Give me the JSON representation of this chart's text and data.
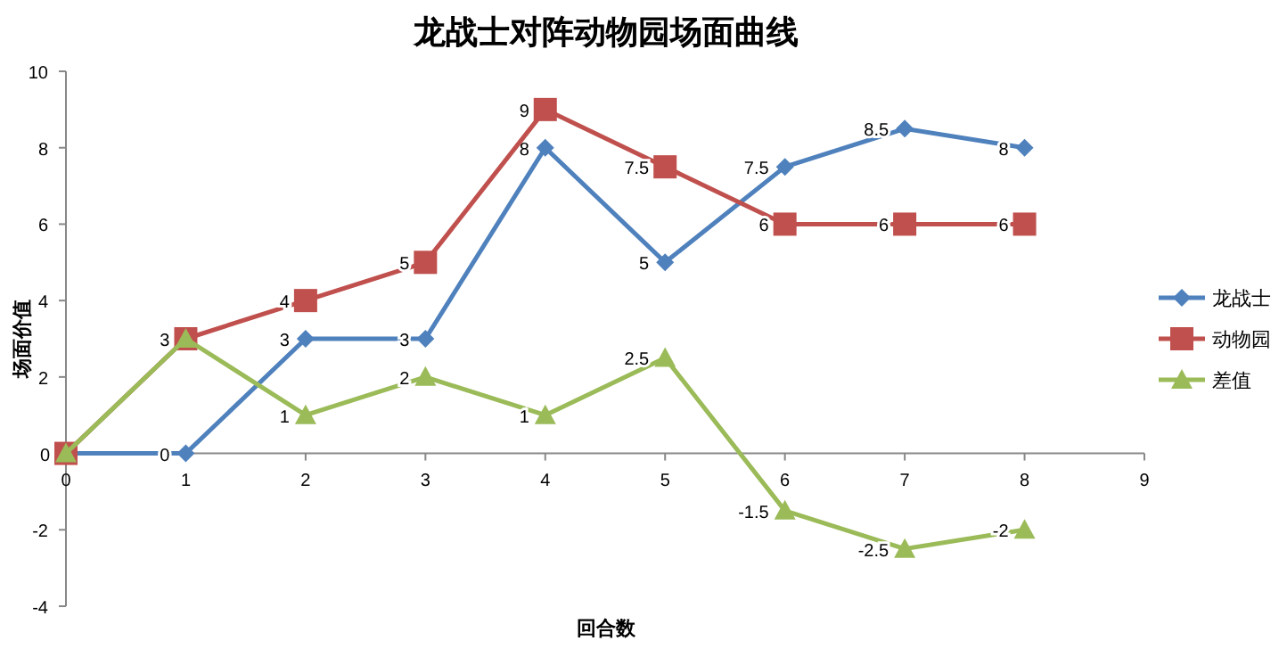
{
  "chart_data": {
    "type": "line",
    "title": "龙战士对阵动物园场面曲线",
    "xlabel": "回合数",
    "ylabel": "场面价值",
    "x": [
      0,
      1,
      2,
      3,
      4,
      5,
      6,
      7,
      8
    ],
    "xlim": [
      0,
      9
    ],
    "xticks": [
      0,
      1,
      2,
      3,
      4,
      5,
      6,
      7,
      8,
      9
    ],
    "ylim": [
      -4,
      10
    ],
    "yticks": [
      -4,
      -2,
      0,
      2,
      4,
      6,
      8,
      10
    ],
    "grid": false,
    "legend": "right",
    "line_style": "solid",
    "series": [
      {
        "name": "龙战士",
        "color": "#4f81bd",
        "marker": "diamond",
        "values": [
          0,
          0,
          3,
          3,
          8,
          5,
          7.5,
          8.5,
          8
        ],
        "value_labels": [
          null,
          "0",
          "3",
          "3",
          "8",
          "5",
          "7.5",
          "8.5",
          "8"
        ]
      },
      {
        "name": "动物园",
        "color": "#c0504d",
        "marker": "square",
        "values": [
          0,
          3,
          4,
          5,
          9,
          7.5,
          6,
          6,
          6
        ],
        "value_labels": [
          null,
          null,
          "4",
          "5",
          "9",
          "7.5",
          "6",
          "6",
          "6"
        ]
      },
      {
        "name": "差值",
        "color": "#9bbb59",
        "marker": "triangle",
        "values": [
          0,
          3,
          1,
          2,
          1,
          2.5,
          -1.5,
          -2.5,
          -2
        ],
        "value_labels": [
          "0",
          "3",
          "1",
          "2",
          "1",
          "2.5",
          "-1.5",
          "-2.5",
          "-2"
        ]
      }
    ]
  }
}
